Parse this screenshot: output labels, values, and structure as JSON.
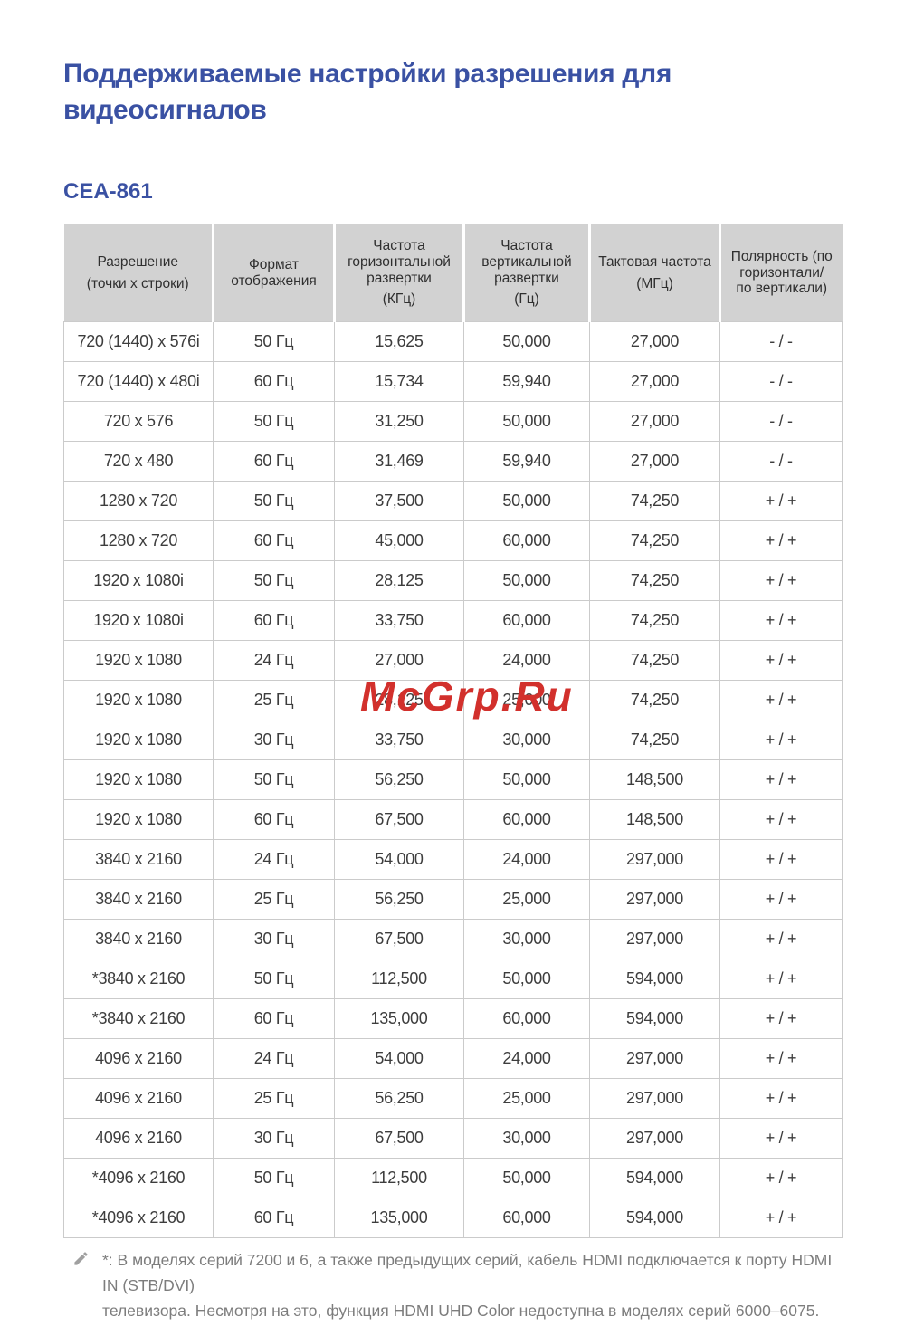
{
  "colors": {
    "accent": "#3a51a3",
    "watermark": "#d2302c",
    "header-bg": "#d2d2d2",
    "border": "#cbcbcb"
  },
  "page": {
    "title": "Поддерживаемые настройки разрешения для видеосигналов",
    "section_heading": "CEA-861"
  },
  "watermark": {
    "text": "McGrp.Ru"
  },
  "table": {
    "headers": [
      {
        "label": "Разрешение",
        "unit": "(точки x строки)"
      },
      {
        "label": "Формат\nотображения",
        "unit": ""
      },
      {
        "label": "Частота\nгоризонтальной\nразвертки",
        "unit": "(КГц)"
      },
      {
        "label": "Частота\nвертикальной\nразвертки",
        "unit": "(Гц)"
      },
      {
        "label": "Тактовая частота",
        "unit": "(МГц)"
      },
      {
        "label": "Полярность (по\nгоризонтали/\nпо вертикали)",
        "unit": ""
      }
    ],
    "rows": [
      [
        "720 (1440) x 576i",
        "50 Гц",
        "15,625",
        "50,000",
        "27,000",
        "- / -"
      ],
      [
        "720 (1440) x 480i",
        "60 Гц",
        "15,734",
        "59,940",
        "27,000",
        "- / -"
      ],
      [
        "720 x 576",
        "50 Гц",
        "31,250",
        "50,000",
        "27,000",
        "- / -"
      ],
      [
        "720 x 480",
        "60 Гц",
        "31,469",
        "59,940",
        "27,000",
        "- / -"
      ],
      [
        "1280 x 720",
        "50 Гц",
        "37,500",
        "50,000",
        "74,250",
        "+ / +"
      ],
      [
        "1280 x 720",
        "60 Гц",
        "45,000",
        "60,000",
        "74,250",
        "+ / +"
      ],
      [
        "1920 x 1080i",
        "50 Гц",
        "28,125",
        "50,000",
        "74,250",
        "+ / +"
      ],
      [
        "1920 x 1080i",
        "60 Гц",
        "33,750",
        "60,000",
        "74,250",
        "+ / +"
      ],
      [
        "1920 x 1080",
        "24 Гц",
        "27,000",
        "24,000",
        "74,250",
        "+ / +"
      ],
      [
        "1920 x 1080",
        "25 Гц",
        "28,125",
        "25,000",
        "74,250",
        "+ / +"
      ],
      [
        "1920 x 1080",
        "30 Гц",
        "33,750",
        "30,000",
        "74,250",
        "+ / +"
      ],
      [
        "1920 x 1080",
        "50 Гц",
        "56,250",
        "50,000",
        "148,500",
        "+ / +"
      ],
      [
        "1920 x 1080",
        "60 Гц",
        "67,500",
        "60,000",
        "148,500",
        "+ / +"
      ],
      [
        "3840 x 2160",
        "24 Гц",
        "54,000",
        "24,000",
        "297,000",
        "+ / +"
      ],
      [
        "3840 x 2160",
        "25 Гц",
        "56,250",
        "25,000",
        "297,000",
        "+ / +"
      ],
      [
        "3840 x 2160",
        "30 Гц",
        "67,500",
        "30,000",
        "297,000",
        "+ / +"
      ],
      [
        "*3840 x 2160",
        "50 Гц",
        "112,500",
        "50,000",
        "594,000",
        "+ / +"
      ],
      [
        "*3840 x 2160",
        "60 Гц",
        "135,000",
        "60,000",
        "594,000",
        "+ / +"
      ],
      [
        "4096 x 2160",
        "24 Гц",
        "54,000",
        "24,000",
        "297,000",
        "+ / +"
      ],
      [
        "4096 x 2160",
        "25 Гц",
        "56,250",
        "25,000",
        "297,000",
        "+ / +"
      ],
      [
        "4096 x 2160",
        "30 Гц",
        "67,500",
        "30,000",
        "297,000",
        "+ / +"
      ],
      [
        "*4096 x 2160",
        "50 Гц",
        "112,500",
        "50,000",
        "594,000",
        "+ / +"
      ],
      [
        "*4096 x 2160",
        "60 Гц",
        "135,000",
        "60,000",
        "594,000",
        "+ / +"
      ]
    ]
  },
  "footnote": {
    "text": "*: В моделях серий 7200 и 6, а также предыдущих серий, кабель HDMI подключается к порту HDMI IN (STB/DVI)\nтелевизора. Несмотря на это, функция HDMI UHD Color недоступна в моделях серий 6000–6075."
  }
}
